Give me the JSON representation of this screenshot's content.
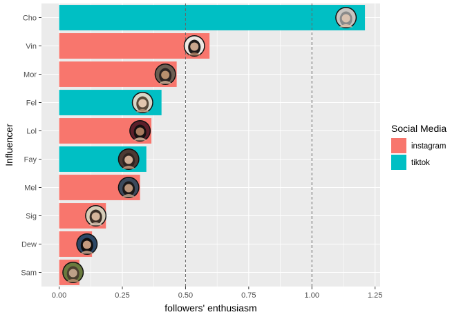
{
  "chart_data": {
    "type": "bar",
    "orientation": "horizontal",
    "categories": [
      "Cho",
      "Vin",
      "Mor",
      "Fel",
      "Lol",
      "Fay",
      "Mel",
      "Sig",
      "Dew",
      "Sam"
    ],
    "values": [
      1.21,
      0.595,
      0.465,
      0.405,
      0.365,
      0.345,
      0.32,
      0.185,
      0.13,
      0.08
    ],
    "groups": [
      "tiktok",
      "instagram",
      "instagram",
      "tiktok",
      "instagram",
      "tiktok",
      "instagram",
      "instagram",
      "instagram",
      "instagram"
    ],
    "avatar_positions": [
      1.135,
      0.535,
      0.42,
      0.33,
      0.32,
      0.275,
      0.275,
      0.145,
      0.11,
      0.055
    ],
    "xlabel": "followers' enthusiasm",
    "ylabel": "Influencer",
    "xlim": [
      -0.07,
      1.27
    ],
    "xticks": [
      0,
      0.25,
      0.5,
      0.75,
      1.0,
      1.25
    ],
    "xtick_labels": [
      "0.00",
      "0.25",
      "0.50",
      "0.75",
      "1.00",
      "1.25"
    ],
    "reference_lines": [
      0.5,
      1.0
    ],
    "reference_line_style": "dashed",
    "grid": true,
    "legend": {
      "title": "Social Media",
      "position": "right",
      "entries": [
        {
          "label": "instagram",
          "color": "#F8766D"
        },
        {
          "label": "tiktok",
          "color": "#00BFC4"
        }
      ]
    },
    "colors": {
      "instagram": "#F8766D",
      "tiktok": "#00BFC4",
      "panel": "#EBEBEB",
      "grid": "#FFFFFF"
    }
  }
}
